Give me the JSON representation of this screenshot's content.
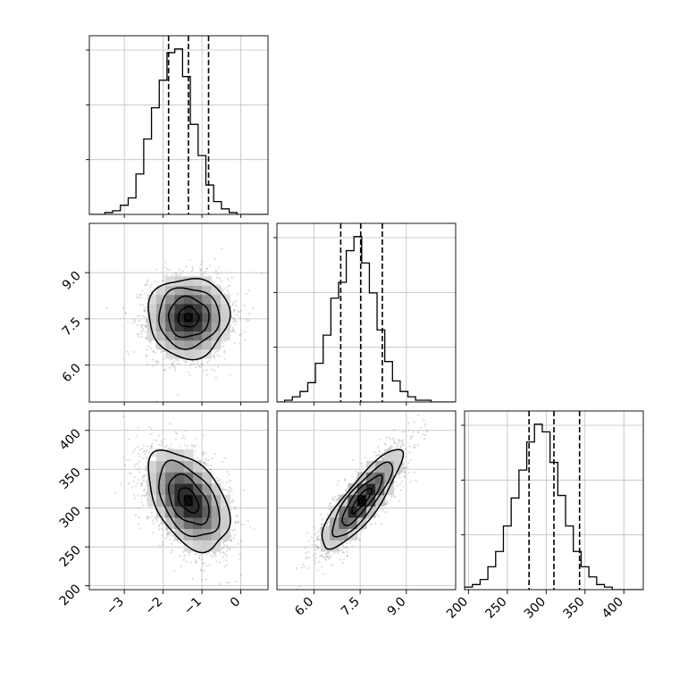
{
  "chart_data": [
    {
      "type": "histogram",
      "panel": "param1-marginal",
      "x_range": [
        -3.9,
        0.7
      ],
      "bins_x_start": -3.9,
      "bin_width": 0.2,
      "counts": [
        0,
        0,
        1,
        2,
        5,
        9,
        22,
        41,
        58,
        73,
        88,
        90,
        75,
        49,
        32,
        16,
        7,
        3,
        1,
        0,
        0,
        0,
        0
      ],
      "quantiles": [
        -1.86,
        -1.35,
        -0.83
      ],
      "grid": true
    },
    {
      "type": "histogram",
      "panel": "param2-marginal",
      "x_range": [
        4.8,
        10.6
      ],
      "bins_x_start": 4.8,
      "bin_width": 0.25,
      "counts": [
        0,
        1,
        3,
        6,
        11,
        22,
        38,
        59,
        68,
        86,
        94,
        79,
        62,
        41,
        23,
        12,
        6,
        3,
        1,
        1,
        0,
        0,
        0
      ],
      "quantiles": [
        6.87,
        7.52,
        8.22
      ],
      "grid": true
    },
    {
      "type": "histogram",
      "panel": "param3-marginal",
      "x_range": [
        195,
        425
      ],
      "bins_x_start": 195,
      "bin_width": 10,
      "counts": [
        1,
        2,
        4,
        9,
        15,
        25,
        36,
        47,
        58,
        65,
        62,
        50,
        37,
        25,
        15,
        9,
        5,
        2,
        1,
        0,
        0,
        0,
        0
      ],
      "quantiles": [
        278,
        310,
        343
      ],
      "grid": true
    },
    {
      "type": "scatter",
      "panel": "param1-vs-param2",
      "x_range": [
        -3.9,
        0.7
      ],
      "y_range": [
        4.8,
        10.6
      ],
      "mean": [
        -1.35,
        7.55
      ],
      "std": [
        0.52,
        0.65
      ],
      "correlation": 0.0,
      "contours": true,
      "grid": true
    },
    {
      "type": "scatter",
      "panel": "param1-vs-param3",
      "x_range": [
        -3.9,
        0.7
      ],
      "y_range": [
        195,
        425
      ],
      "mean": [
        -1.35,
        310
      ],
      "std": [
        0.52,
        32
      ],
      "correlation": -0.45,
      "contours": true,
      "grid": true
    },
    {
      "type": "scatter",
      "panel": "param2-vs-param3",
      "x_range": [
        4.8,
        10.6
      ],
      "y_range": [
        195,
        425
      ],
      "mean": [
        7.55,
        310
      ],
      "std": [
        0.65,
        32
      ],
      "correlation": 0.85,
      "contours": true,
      "grid": true
    }
  ],
  "axes": {
    "row2_y_ticks": [
      "6.0",
      "7.5",
      "9.0"
    ],
    "row3_y_ticks": [
      "200",
      "250",
      "300",
      "350",
      "400"
    ],
    "col1_x_ticks": [
      "−3",
      "−2",
      "−1",
      "0"
    ],
    "col2_x_ticks": [
      "6.0",
      "7.5",
      "9.0"
    ],
    "col3_x_ticks": [
      "200",
      "250",
      "300",
      "350",
      "400"
    ]
  }
}
